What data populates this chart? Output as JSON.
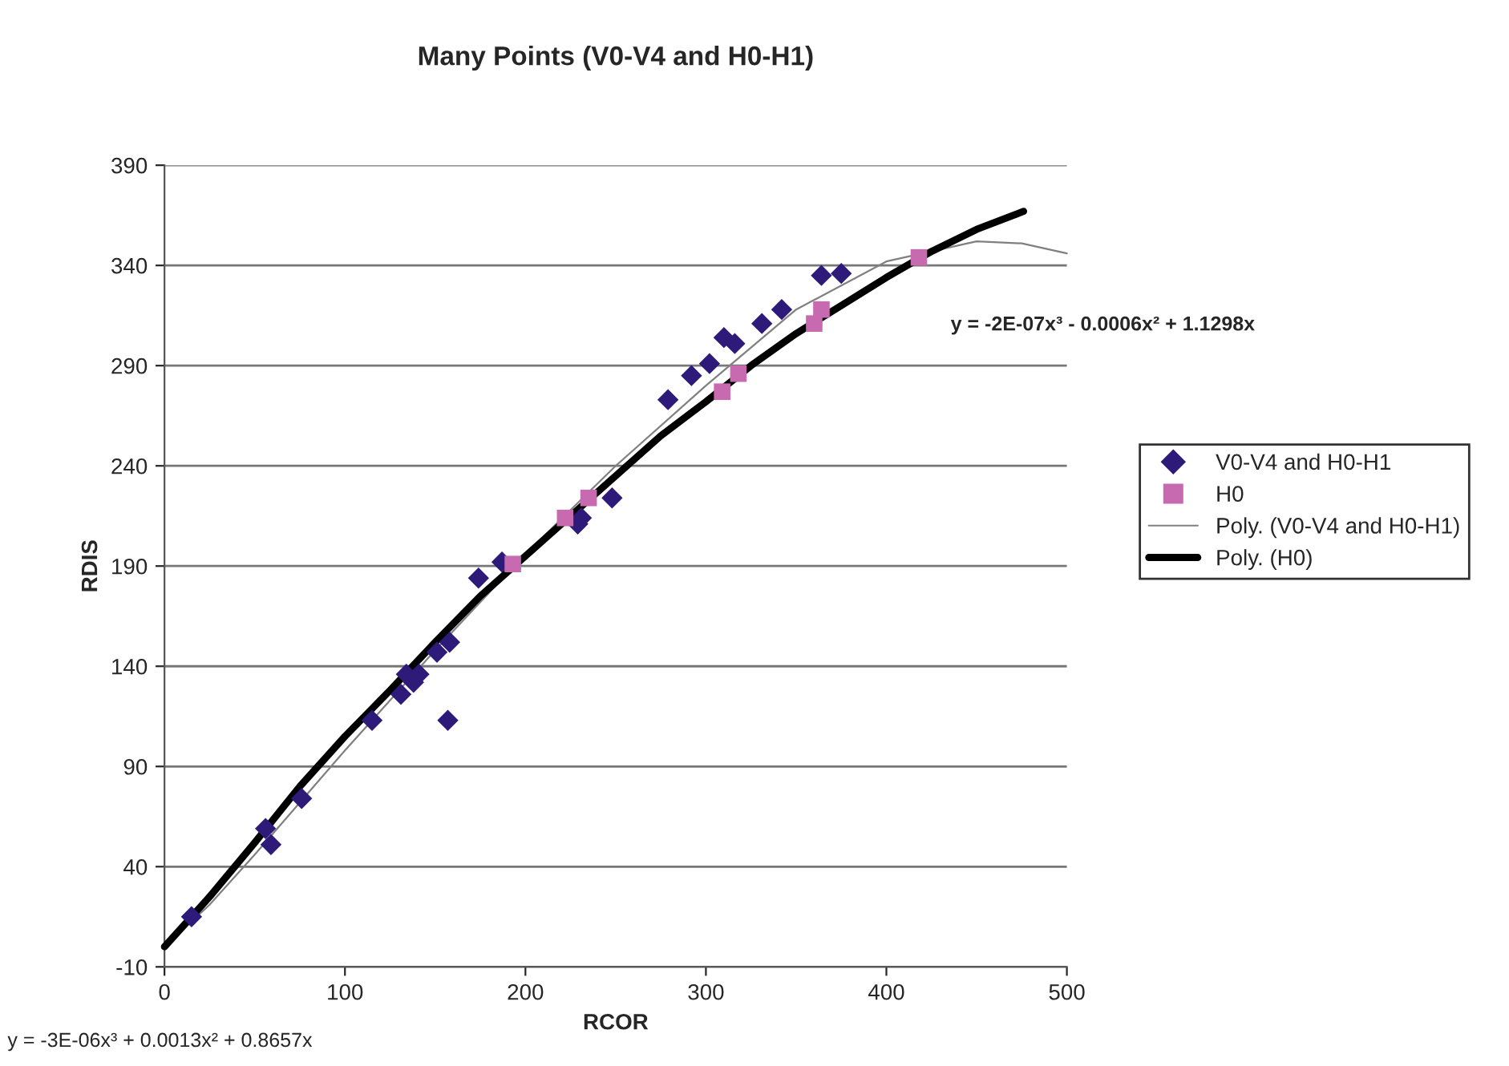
{
  "chart_data": {
    "type": "scatter",
    "title": "Many Points (V0-V4 and H0-H1)",
    "xlabel": "RCOR",
    "ylabel": "RDIS",
    "xlim": [
      0,
      500
    ],
    "xticks": [
      0,
      100,
      200,
      300,
      400,
      500
    ],
    "ylim": [
      -10,
      390
    ],
    "yticks": [
      -10,
      40,
      90,
      140,
      190,
      240,
      290,
      340,
      390
    ],
    "grid": "y",
    "legend": "right",
    "annotations": [
      "y = -2E-07x³ - 0.0006x² + 1.1298x",
      "y = -3E-06x³ + 0.0013x² + 0.8657x"
    ],
    "series": [
      {
        "name": "V0-V4 and H0-H1",
        "marker": "diamond",
        "color": "#2e1a78",
        "x": [
          15,
          56,
          59,
          76,
          115,
          131,
          134,
          138,
          141,
          151,
          158,
          157,
          174,
          187,
          229,
          231,
          248,
          279,
          292,
          302,
          310,
          316,
          331,
          342,
          364,
          375
        ],
        "values": [
          15,
          59,
          51,
          74,
          113,
          126,
          136,
          132,
          136,
          147,
          152,
          113,
          184,
          192,
          211,
          214,
          224,
          273,
          285,
          291,
          304,
          301,
          311,
          318,
          335,
          336
        ]
      },
      {
        "name": "H0",
        "marker": "square",
        "color": "#c86ab0",
        "x": [
          193,
          222,
          235,
          309,
          318,
          360,
          364,
          418
        ],
        "values": [
          191,
          214,
          224,
          277,
          286,
          311,
          318,
          344
        ]
      },
      {
        "name": "Poly. (V0-V4 and H0-H1)",
        "type": "line",
        "marker": "none",
        "color": "#808080",
        "x": [
          0,
          25,
          50,
          75,
          100,
          150,
          200,
          250,
          300,
          350,
          400,
          450,
          475,
          500
        ],
        "values": [
          0,
          21,
          46,
          72,
          98,
          148,
          196,
          240,
          280,
          318,
          342,
          352,
          351,
          346
        ]
      },
      {
        "name": "Poly. (H0)",
        "type": "line",
        "marker": "none",
        "color": "#000000",
        "x": [
          0,
          25,
          50,
          75,
          100,
          125,
          150,
          175,
          200,
          225,
          250,
          275,
          300,
          325,
          350,
          375,
          400,
          425,
          450,
          476
        ],
        "values": [
          0,
          25,
          52,
          80,
          105,
          128,
          152,
          175,
          195,
          215,
          235,
          255,
          272,
          290,
          306,
          320,
          334,
          347,
          358,
          367
        ]
      }
    ]
  }
}
